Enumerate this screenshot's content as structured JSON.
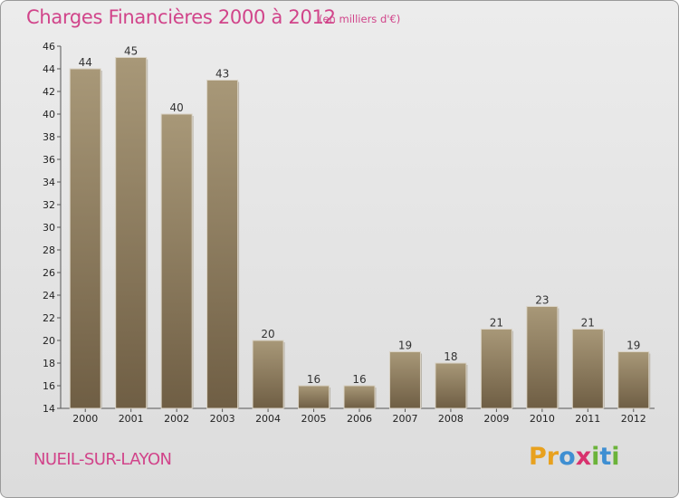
{
  "chart_data": {
    "type": "bar",
    "title": "Charges Financières 2000 à 2012",
    "subtitle": "(en milliers d'€)",
    "categories": [
      "2000",
      "2001",
      "2002",
      "2003",
      "2004",
      "2005",
      "2006",
      "2007",
      "2008",
      "2009",
      "2010",
      "2011",
      "2012"
    ],
    "values": [
      44,
      45,
      40,
      43,
      20,
      16,
      16,
      19,
      18,
      21,
      23,
      21,
      19
    ],
    "ylim": [
      14,
      46
    ],
    "yticks": [
      14,
      16,
      18,
      20,
      22,
      24,
      26,
      28,
      30,
      32,
      34,
      36,
      38,
      40,
      42,
      44,
      46
    ],
    "xlabel": "",
    "ylabel": "",
    "grid": false,
    "bar_color_top": "#a89878",
    "bar_color_bottom": "#6f5e44"
  },
  "commune": "NUEIL-SUR-LAYON",
  "logo": {
    "text": "Proxiti",
    "letters": [
      {
        "ch": "P",
        "color": "#e8a11e"
      },
      {
        "ch": "r",
        "color": "#e8a11e"
      },
      {
        "ch": "o",
        "color": "#3f8fd2"
      },
      {
        "ch": "x",
        "color": "#d8326e"
      },
      {
        "ch": "i",
        "color": "#6bb33a"
      },
      {
        "ch": "t",
        "color": "#3f8fd2"
      },
      {
        "ch": "i",
        "color": "#6bb33a"
      }
    ]
  }
}
